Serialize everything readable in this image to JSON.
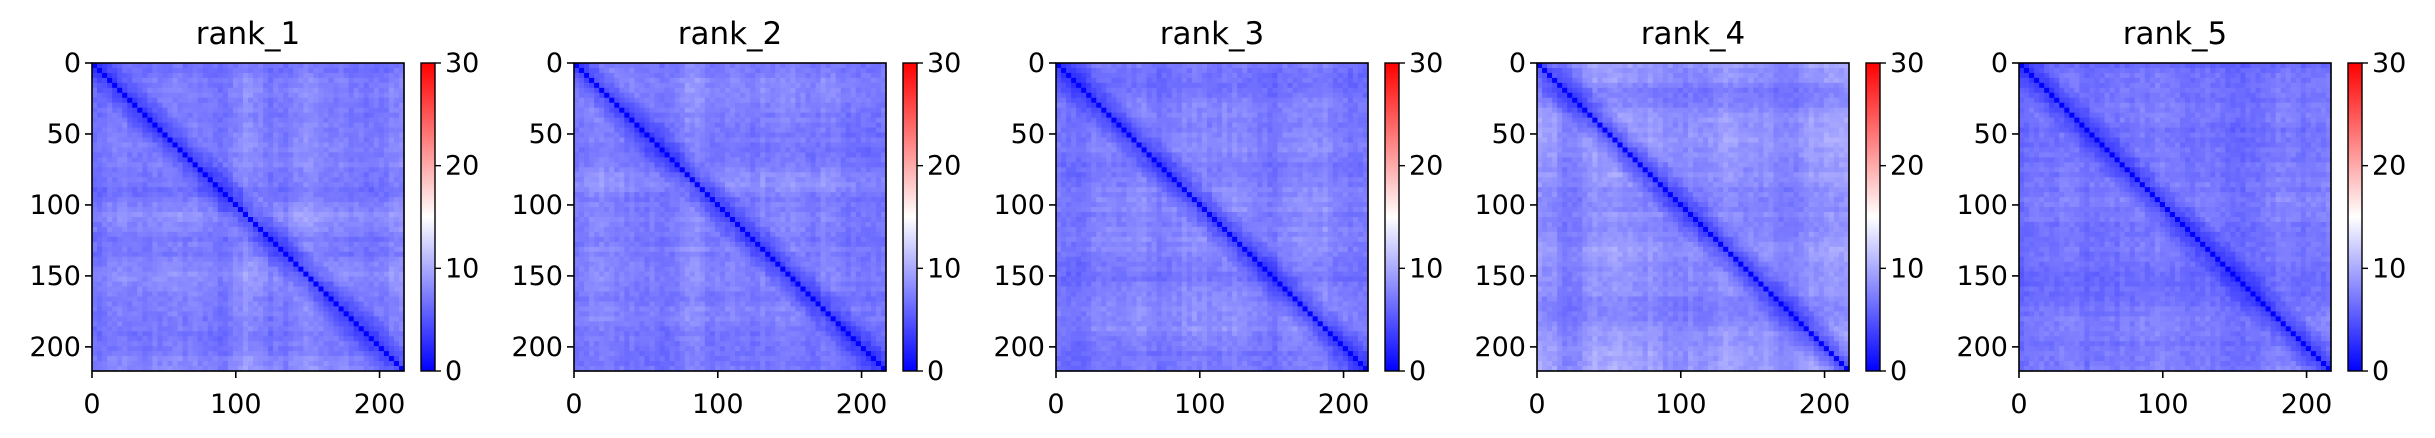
{
  "figure": {
    "panels": [
      {
        "title": "rank_1",
        "seed": 11
      },
      {
        "title": "rank_2",
        "seed": 23
      },
      {
        "title": "rank_3",
        "seed": 37
      },
      {
        "title": "rank_4",
        "seed": 41
      },
      {
        "title": "rank_5",
        "seed": 53
      }
    ],
    "x_ticks": [
      "0",
      "100",
      "200"
    ],
    "y_ticks": [
      "0",
      "50",
      "100",
      "150",
      "200"
    ],
    "colorbar_ticks": [
      "0",
      "10",
      "20",
      "30"
    ],
    "colormap": {
      "low": "#0000ff",
      "mid": "#ffffff",
      "high": "#ff0000"
    }
  },
  "chart_data": [
    {
      "type": "heatmap",
      "title": "rank_1",
      "x_range": [
        0,
        217
      ],
      "y_range": [
        217,
        0
      ],
      "x_ticks": [
        0,
        100,
        200
      ],
      "y_ticks": [
        0,
        50,
        100,
        150,
        200
      ],
      "colorbar": {
        "min": 0,
        "max": 30,
        "ticks": [
          0,
          10,
          20,
          30
        ],
        "cmap": "bwr"
      },
      "value_range_approx": [
        0,
        14
      ],
      "diagonal": 0
    },
    {
      "type": "heatmap",
      "title": "rank_2",
      "x_range": [
        0,
        217
      ],
      "y_range": [
        217,
        0
      ],
      "x_ticks": [
        0,
        100,
        200
      ],
      "y_ticks": [
        0,
        50,
        100,
        150,
        200
      ],
      "colorbar": {
        "min": 0,
        "max": 30,
        "ticks": [
          0,
          10,
          20,
          30
        ],
        "cmap": "bwr"
      },
      "value_range_approx": [
        0,
        14
      ],
      "diagonal": 0
    },
    {
      "type": "heatmap",
      "title": "rank_3",
      "x_range": [
        0,
        217
      ],
      "y_range": [
        217,
        0
      ],
      "x_ticks": [
        0,
        100,
        200
      ],
      "y_ticks": [
        0,
        50,
        100,
        150,
        200
      ],
      "colorbar": {
        "min": 0,
        "max": 30,
        "ticks": [
          0,
          10,
          20,
          30
        ],
        "cmap": "bwr"
      },
      "value_range_approx": [
        0,
        14
      ],
      "diagonal": 0
    },
    {
      "type": "heatmap",
      "title": "rank_4",
      "x_range": [
        0,
        217
      ],
      "y_range": [
        217,
        0
      ],
      "x_ticks": [
        0,
        100,
        200
      ],
      "y_ticks": [
        0,
        50,
        100,
        150,
        200
      ],
      "colorbar": {
        "min": 0,
        "max": 30,
        "ticks": [
          0,
          10,
          20,
          30
        ],
        "cmap": "bwr"
      },
      "value_range_approx": [
        0,
        14
      ],
      "diagonal": 0
    },
    {
      "type": "heatmap",
      "title": "rank_5",
      "x_range": [
        0,
        217
      ],
      "y_range": [
        217,
        0
      ],
      "x_ticks": [
        0,
        100,
        200
      ],
      "y_ticks": [
        0,
        50,
        100,
        150,
        200
      ],
      "colorbar": {
        "min": 0,
        "max": 30,
        "ticks": [
          0,
          10,
          20,
          30
        ],
        "cmap": "bwr"
      },
      "value_range_approx": [
        0,
        14
      ],
      "diagonal": 0
    }
  ]
}
